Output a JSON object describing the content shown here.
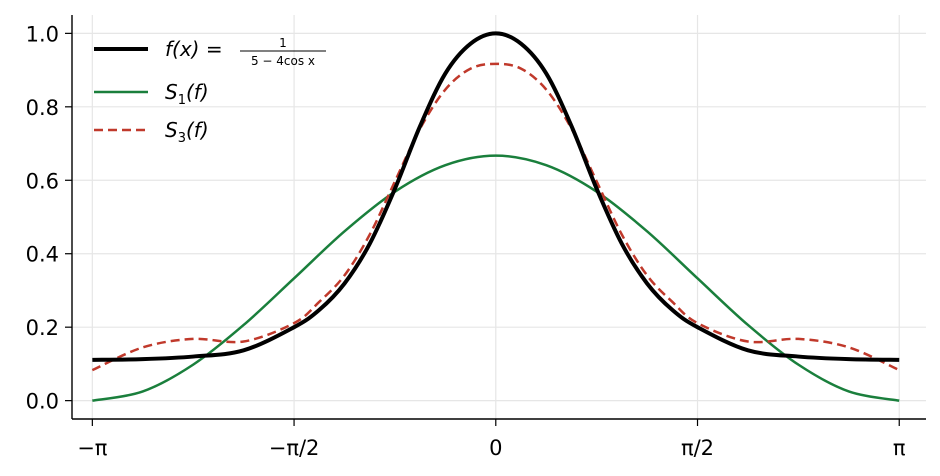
{
  "chart_data": {
    "type": "line",
    "title": "",
    "xlabel": "",
    "ylabel": "",
    "xlim": [
      -3.3,
      3.35
    ],
    "ylim": [
      -0.05,
      1.05
    ],
    "grid": true,
    "legend_position": "top-left",
    "x_ticks": [
      {
        "value": -3.14159,
        "label": "−π"
      },
      {
        "value": -1.5708,
        "label": "−π/2"
      },
      {
        "value": 0,
        "label": "0"
      },
      {
        "value": 1.5708,
        "label": "π/2"
      },
      {
        "value": 3.14159,
        "label": "π"
      }
    ],
    "y_ticks": [
      {
        "value": 0.0,
        "label": "0.0"
      },
      {
        "value": 0.2,
        "label": "0.2"
      },
      {
        "value": 0.4,
        "label": "0.4"
      },
      {
        "value": 0.6,
        "label": "0.6"
      },
      {
        "value": 0.8,
        "label": "0.8"
      },
      {
        "value": 1.0,
        "label": "1.0"
      }
    ],
    "series": [
      {
        "legend_prefix": "f(x) =",
        "legend_numerator": "1",
        "legend_denominator": "5 − 4cos x",
        "color": "#000000",
        "style": "solid-thick",
        "x": [
          -3.1416,
          -2.7489,
          -2.3562,
          -1.9635,
          -1.5708,
          -1.3744,
          -1.1781,
          -0.9817,
          -0.7854,
          -0.589,
          -0.3927,
          -0.1963,
          0,
          0.1963,
          0.3927,
          0.589,
          0.7854,
          0.9817,
          1.1781,
          1.3744,
          1.5708,
          1.9635,
          2.3562,
          2.7489,
          3.1416
        ],
        "y": [
          0.111,
          0.113,
          0.12,
          0.137,
          0.2,
          0.247,
          0.319,
          0.427,
          0.577,
          0.748,
          0.891,
          0.972,
          1.0,
          0.972,
          0.891,
          0.748,
          0.577,
          0.427,
          0.319,
          0.247,
          0.2,
          0.137,
          0.12,
          0.113,
          0.111
        ]
      },
      {
        "legend_label": "S",
        "legend_subscript": "1",
        "legend_suffix": "(f)",
        "color": "#1a7f3c",
        "style": "solid",
        "x": [
          -3.1416,
          -2.7489,
          -2.3562,
          -1.9635,
          -1.5708,
          -1.1781,
          -0.7854,
          -0.3927,
          0,
          0.3927,
          0.7854,
          1.1781,
          1.5708,
          1.9635,
          2.3562,
          2.7489,
          3.1416
        ],
        "y": [
          0.0,
          0.025,
          0.098,
          0.206,
          0.333,
          0.461,
          0.569,
          0.641,
          0.667,
          0.641,
          0.569,
          0.461,
          0.333,
          0.206,
          0.098,
          0.025,
          0.0
        ]
      },
      {
        "legend_label": "S",
        "legend_subscript": "3",
        "legend_suffix": "(f)",
        "color": "#c0392b",
        "style": "dashed",
        "x": [
          -3.1416,
          -2.7489,
          -2.3562,
          -1.9635,
          -1.5708,
          -1.3744,
          -1.1781,
          -0.9817,
          -0.7854,
          -0.589,
          -0.3927,
          -0.1963,
          0,
          0.1963,
          0.3927,
          0.589,
          0.7854,
          0.9817,
          1.1781,
          1.3744,
          1.5708,
          1.9635,
          2.3562,
          2.7489,
          3.1416
        ],
        "y": [
          0.083,
          0.145,
          0.168,
          0.161,
          0.211,
          0.269,
          0.341,
          0.452,
          0.597,
          0.741,
          0.847,
          0.904,
          0.917,
          0.904,
          0.847,
          0.741,
          0.597,
          0.452,
          0.341,
          0.269,
          0.211,
          0.161,
          0.168,
          0.145,
          0.083
        ]
      }
    ]
  }
}
